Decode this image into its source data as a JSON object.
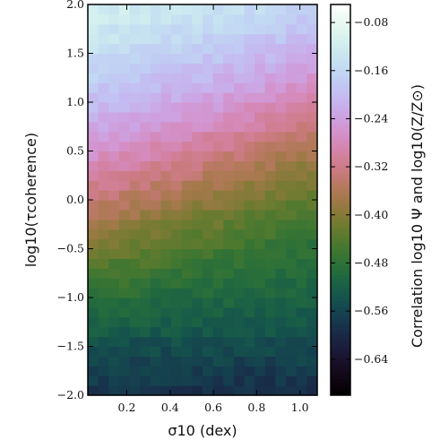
{
  "chart_data": {
    "type": "heatmap",
    "title": "",
    "xlabel": "σ10 (dex)",
    "ylabel": "log10(τcoherence)",
    "colorbar_label": "Correlation log10 Ψ and log10(Z/Z⊙)",
    "xlim": [
      0.02,
      1.08
    ],
    "ylim": [
      -2.0,
      2.0
    ],
    "x_ticks": [
      "0.2",
      "0.4",
      "0.6",
      "0.8",
      "1.0"
    ],
    "y_ticks": [
      "−2.0",
      "−1.5",
      "−1.0",
      "−0.5",
      "0.0",
      "0.5",
      "1.0",
      "1.5",
      "2.0"
    ],
    "colorbar_range": [
      -0.7,
      -0.05
    ],
    "colorbar_ticks": [
      "−0.08",
      "−0.16",
      "−0.24",
      "−0.32",
      "−0.40",
      "−0.48",
      "−0.56",
      "−0.64"
    ],
    "colormap": "cubehelix",
    "grid": false,
    "description_of_field": "Correlation rises with log10(τcoherence); at low τ the correlation is most negative for small σ10 and increases toward large σ10 (bottom-right greener). Top rows near −0.06, middle (τ≈1) near −0.28."
  },
  "labels": {
    "x_tick_vals": [
      0.2,
      0.4,
      0.6,
      0.8,
      1.0
    ],
    "y_tick_vals": [
      -2.0,
      -1.5,
      -1.0,
      -0.5,
      0.0,
      0.5,
      1.0,
      1.5,
      2.0
    ],
    "cb_tick_vals": [
      -0.08,
      -0.16,
      -0.24,
      -0.32,
      -0.4,
      -0.48,
      -0.56,
      -0.64
    ]
  }
}
